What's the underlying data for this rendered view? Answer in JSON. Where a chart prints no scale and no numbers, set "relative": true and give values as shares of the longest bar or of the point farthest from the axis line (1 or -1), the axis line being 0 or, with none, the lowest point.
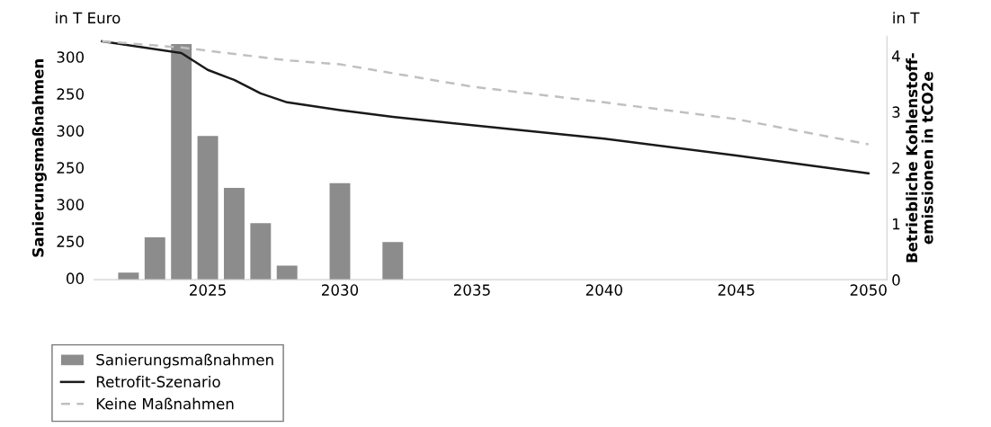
{
  "chart_data": [
    {
      "type": "bar",
      "x": [
        2022,
        2023,
        2024,
        2025,
        2026,
        2027,
        2028,
        2030,
        2032
      ],
      "ylabel": "Sanierungsmaßnahmen",
      "annotations": [
        "in T Euro",
        "300",
        "250",
        "300",
        "250",
        "300",
        "250",
        "00"
      ],
      "relative": true,
      "series": [
        {
          "name": "Sanierungsmaßnahmen",
          "color": "#8c8c8c",
          "values": [
            0.03,
            0.18,
            1,
            0.61,
            0.39,
            0.24,
            0.06,
            0.41,
            0.16
          ]
        }
      ],
      "xlim": [
        2020.7,
        2050.7
      ],
      "xticks": [
        2025,
        2030,
        2035,
        2040,
        2045,
        2050
      ],
      "grid": false,
      "legend": "bottom left"
    },
    {
      "type": "line",
      "y2label": "Betriebliche Kohlenstoff-\nemissionen in tCO2e",
      "annotations": [
        "in T"
      ],
      "series": [
        {
          "name": "Retrofit-Szenario",
          "axis": "y2",
          "color": "#1a1a1a",
          "line_style": "solid",
          "x": [
            2021,
            2024,
            2025,
            2026,
            2027,
            2028,
            2030,
            2032,
            2035,
            2040,
            2045,
            2050
          ],
          "values": [
            4.26,
            4.05,
            3.75,
            3.57,
            3.33,
            3.17,
            3.03,
            2.91,
            2.76,
            2.52,
            2.22,
            1.9
          ]
        },
        {
          "name": "Keine Maßnahmen",
          "axis": "y2",
          "color": "#c0c0c0",
          "line_style": "dashed",
          "x": [
            2021,
            2024,
            2028,
            2030,
            2035,
            2040,
            2045,
            2050
          ],
          "values": [
            4.26,
            4.15,
            3.92,
            3.85,
            3.45,
            3.17,
            2.87,
            2.42
          ]
        }
      ],
      "xlim": [
        2020.7,
        2050.7
      ],
      "tick_labels": "y",
      "y2lim": [
        0,
        4.35
      ],
      "y2ticks": [
        0,
        1,
        2,
        3,
        4
      ],
      "grid": false,
      "legend": "bottom left"
    }
  ]
}
